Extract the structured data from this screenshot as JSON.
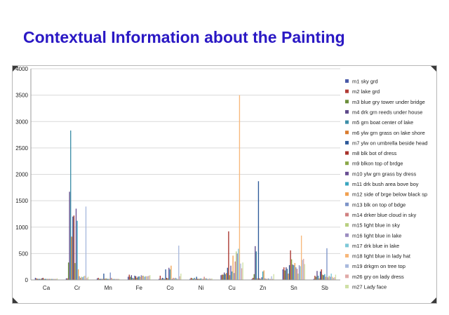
{
  "slide": {
    "title": "Contextual Information about the Painting"
  },
  "chart_data": {
    "type": "bar",
    "title": "",
    "xlabel": "",
    "ylabel": "",
    "ylim": [
      0,
      4000
    ],
    "yticks": [
      0,
      500,
      1000,
      1500,
      2000,
      2500,
      3000,
      3500,
      4000
    ],
    "grid": true,
    "legend_position": "right",
    "categories": [
      "Ca",
      "Cr",
      "Mn",
      "Fe",
      "Co",
      "Ni",
      "Cu",
      "Zn",
      "Sn",
      "Sb"
    ],
    "series": [
      {
        "name": "m1 sky grd",
        "color": "#4a5aa8",
        "values": [
          40,
          30,
          30,
          60,
          20,
          20,
          90,
          20,
          200,
          20
        ]
      },
      {
        "name": "m2 lake grd",
        "color": "#b13b35",
        "values": [
          30,
          30,
          40,
          100,
          80,
          40,
          100,
          40,
          240,
          80
        ]
      },
      {
        "name": "m3 blue gry tower under bridge",
        "color": "#6b8e3a",
        "values": [
          20,
          330,
          20,
          60,
          20,
          30,
          100,
          110,
          180,
          60
        ]
      },
      {
        "name": "m4 drk grn reeds under house",
        "color": "#5e4a8a",
        "values": [
          20,
          1670,
          20,
          90,
          40,
          20,
          140,
          640,
          240,
          170
        ]
      },
      {
        "name": "m5 grn boat center of lake",
        "color": "#3d8ea8",
        "values": [
          20,
          2830,
          20,
          40,
          30,
          40,
          110,
          540,
          210,
          80
        ]
      },
      {
        "name": "m6 ylw grn grass on lake shore",
        "color": "#d97b2e",
        "values": [
          20,
          820,
          20,
          30,
          20,
          20,
          130,
          30,
          120,
          30
        ]
      },
      {
        "name": "m7 ylw on umbrella beside head",
        "color": "#2e5a9a",
        "values": [
          30,
          1200,
          120,
          80,
          200,
          60,
          230,
          1870,
          280,
          160
        ]
      },
      {
        "name": "m8 blk bot of dress",
        "color": "#a8322b",
        "values": [
          40,
          1220,
          20,
          70,
          40,
          20,
          920,
          30,
          560,
          200
        ]
      },
      {
        "name": "m9 blkon top of brdge",
        "color": "#8aa848",
        "values": [
          20,
          320,
          30,
          40,
          30,
          20,
          90,
          20,
          390,
          100
        ]
      },
      {
        "name": "m10 ylw grn grass by dress",
        "color": "#6a4f94",
        "values": [
          20,
          1350,
          20,
          60,
          230,
          20,
          270,
          50,
          290,
          90
        ]
      },
      {
        "name": "m11 drk bush area bove boy",
        "color": "#3aa6c0",
        "values": [
          20,
          1120,
          20,
          70,
          200,
          30,
          160,
          160,
          280,
          110
        ]
      },
      {
        "name": "m12 side of brge below black sp",
        "color": "#f0a050",
        "values": [
          20,
          200,
          20,
          60,
          270,
          20,
          460,
          180,
          320,
          60
        ]
      },
      {
        "name": "m13 blk on top of bdge",
        "color": "#7d94c8",
        "values": [
          20,
          70,
          140,
          90,
          20,
          20,
          130,
          30,
          240,
          600
        ]
      },
      {
        "name": "m14 drker blue cloud in sky",
        "color": "#d08080",
        "values": [
          20,
          40,
          40,
          80,
          40,
          60,
          350,
          20,
          210,
          50
        ]
      },
      {
        "name": "m15 light blue in sky",
        "color": "#b8cf80",
        "values": [
          20,
          60,
          20,
          80,
          30,
          30,
          540,
          20,
          120,
          80
        ]
      },
      {
        "name": "m16 light blue in lake",
        "color": "#9b8cc0",
        "values": [
          20,
          50,
          20,
          60,
          40,
          30,
          500,
          30,
          280,
          60
        ]
      },
      {
        "name": "m17 drk blue in lake",
        "color": "#7ec8d8",
        "values": [
          20,
          70,
          20,
          70,
          30,
          20,
          590,
          20,
          260,
          120
        ]
      },
      {
        "name": "m18 light blue in lady hat",
        "color": "#f7b77a",
        "values": [
          20,
          80,
          20,
          70,
          20,
          20,
          3500,
          20,
          840,
          60
        ]
      },
      {
        "name": "m19 drkgrn on tree top",
        "color": "#a9b9dd",
        "values": [
          20,
          1390,
          20,
          70,
          650,
          30,
          310,
          70,
          380,
          40
        ]
      },
      {
        "name": "m26 gry on lady dress",
        "color": "#e0aaa8",
        "values": [
          20,
          40,
          20,
          80,
          70,
          20,
          220,
          20,
          400,
          50
        ]
      },
      {
        "name": "m27 Lady face",
        "color": "#cfe0a6",
        "values": [
          30,
          60,
          20,
          90,
          120,
          30,
          330,
          110,
          300,
          100
        ]
      }
    ]
  }
}
